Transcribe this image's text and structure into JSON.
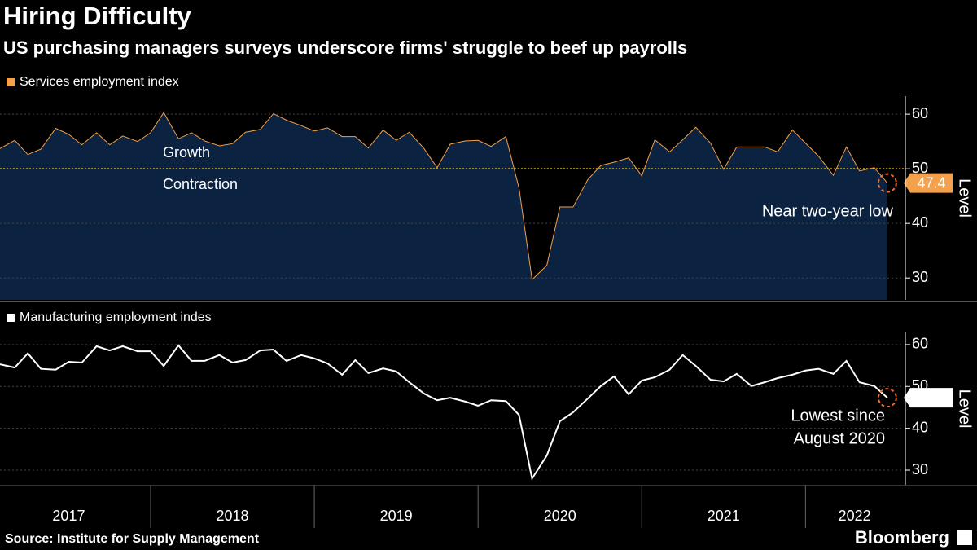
{
  "title": "Hiring Difficulty",
  "subtitle": "US purchasing managers surveys underscore firms' struggle to beef up payrolls",
  "source": "Source: Institute for Supply Management",
  "brand": "Bloomberg",
  "chart_data": [
    {
      "type": "line",
      "x": [
        2017.08,
        2017.17,
        2017.25,
        2017.33,
        2017.42,
        2017.5,
        2017.58,
        2017.67,
        2017.75,
        2017.83,
        2017.92,
        2018.0,
        2018.08,
        2018.17,
        2018.25,
        2018.33,
        2018.42,
        2018.5,
        2018.58,
        2018.67,
        2018.75,
        2018.83,
        2018.92,
        2019.0,
        2019.08,
        2019.17,
        2019.25,
        2019.33,
        2019.42,
        2019.5,
        2019.58,
        2019.67,
        2019.75,
        2019.83,
        2019.92,
        2020.0,
        2020.08,
        2020.17,
        2020.25,
        2020.33,
        2020.42,
        2020.5,
        2020.58,
        2020.67,
        2020.75,
        2020.83,
        2020.92,
        2021.0,
        2021.08,
        2021.17,
        2021.25,
        2021.33,
        2021.42,
        2021.5,
        2021.58,
        2021.67,
        2021.75,
        2021.83,
        2021.92,
        2022.0,
        2022.08,
        2022.17,
        2022.25,
        2022.33,
        2022.42,
        2022.5
      ],
      "series": [
        {
          "name": "Services employment index",
          "color": "#f5a04a",
          "fill": "#0b2240",
          "values": [
            53.7,
            55.2,
            52.6,
            53.6,
            57.4,
            56.3,
            54.4,
            56.6,
            54.4,
            56.0,
            55.0,
            56.6,
            60.3,
            55.5,
            56.6,
            55.1,
            54.2,
            54.6,
            56.7,
            57.2,
            60.1,
            58.9,
            57.9,
            56.9,
            57.5,
            55.9,
            55.9,
            53.8,
            57.1,
            55.2,
            56.7,
            53.7,
            50.2,
            54.5,
            55.1,
            55.2,
            54.1,
            55.9,
            46.5,
            29.7,
            32.3,
            43.0,
            43.0,
            48.0,
            50.6,
            51.2,
            52.0,
            48.7,
            55.3,
            53.1,
            55.3,
            57.6,
            54.7,
            49.9,
            54.0,
            54.0,
            54.0,
            53.1,
            57.1,
            54.7,
            52.3,
            48.8,
            54.0,
            49.6,
            50.2,
            47.4
          ]
        }
      ],
      "xlim": [
        2017.08,
        2022.6
      ],
      "ylim": [
        26,
        63.3
      ],
      "yticks": [
        30,
        40,
        50,
        60
      ],
      "ylabel": "Level",
      "grid": true,
      "reference_line": 50,
      "reference_color": "#f2d21b",
      "growth_label": "Growth",
      "contraction_label": "Contraction",
      "callout": [
        "Near two-year low"
      ]
    },
    {
      "type": "line",
      "x": [
        2017.08,
        2017.17,
        2017.25,
        2017.33,
        2017.42,
        2017.5,
        2017.58,
        2017.67,
        2017.75,
        2017.83,
        2017.92,
        2018.0,
        2018.08,
        2018.17,
        2018.25,
        2018.33,
        2018.42,
        2018.5,
        2018.58,
        2018.67,
        2018.75,
        2018.83,
        2018.92,
        2019.0,
        2019.08,
        2019.17,
        2019.25,
        2019.33,
        2019.42,
        2019.5,
        2019.58,
        2019.67,
        2019.75,
        2019.83,
        2019.92,
        2020.0,
        2020.08,
        2020.17,
        2020.25,
        2020.33,
        2020.42,
        2020.5,
        2020.58,
        2020.67,
        2020.75,
        2020.83,
        2020.92,
        2021.0,
        2021.08,
        2021.17,
        2021.25,
        2021.33,
        2021.42,
        2021.5,
        2021.58,
        2021.67,
        2021.75,
        2021.83,
        2021.92,
        2022.0,
        2022.08,
        2022.17,
        2022.25,
        2022.33,
        2022.42,
        2022.5
      ],
      "series": [
        {
          "name": "Manufacturing employment indes",
          "color": "#ffffff",
          "values": [
            55.3,
            54.5,
            57.9,
            54.2,
            54.0,
            55.9,
            55.7,
            59.6,
            58.6,
            59.6,
            58.4,
            58.4,
            54.9,
            59.8,
            56.1,
            56.1,
            57.5,
            55.7,
            56.3,
            58.6,
            58.8,
            56.1,
            57.5,
            56.7,
            55.5,
            52.8,
            56.3,
            53.2,
            54.3,
            53.6,
            51.0,
            48.3,
            46.7,
            47.3,
            46.4,
            45.4,
            46.7,
            46.5,
            43.2,
            28.0,
            33.5,
            41.7,
            43.8,
            47.1,
            50.1,
            52.4,
            48.1,
            51.4,
            52.2,
            54.0,
            57.5,
            54.9,
            51.6,
            51.2,
            53.0,
            50.1,
            51.0,
            52.0,
            52.8,
            53.8,
            54.2,
            53.0,
            56.1,
            51.0,
            50.1,
            47.3
          ]
        }
      ],
      "xlim": [
        2017.08,
        2022.6
      ],
      "xticks": [
        {
          "value": 2017.5,
          "label": "2017"
        },
        {
          "value": 2018.5,
          "label": "2018"
        },
        {
          "value": 2019.5,
          "label": "2019"
        },
        {
          "value": 2020.5,
          "label": "2020"
        },
        {
          "value": 2021.5,
          "label": "2021"
        },
        {
          "value": 2022.3,
          "label": "2022"
        }
      ],
      "ylim": [
        26.5,
        62.9
      ],
      "yticks": [
        30,
        40,
        50,
        60
      ],
      "ylabel": "Level",
      "grid": true,
      "callout": [
        "Lowest since",
        "August 2020"
      ]
    }
  ]
}
